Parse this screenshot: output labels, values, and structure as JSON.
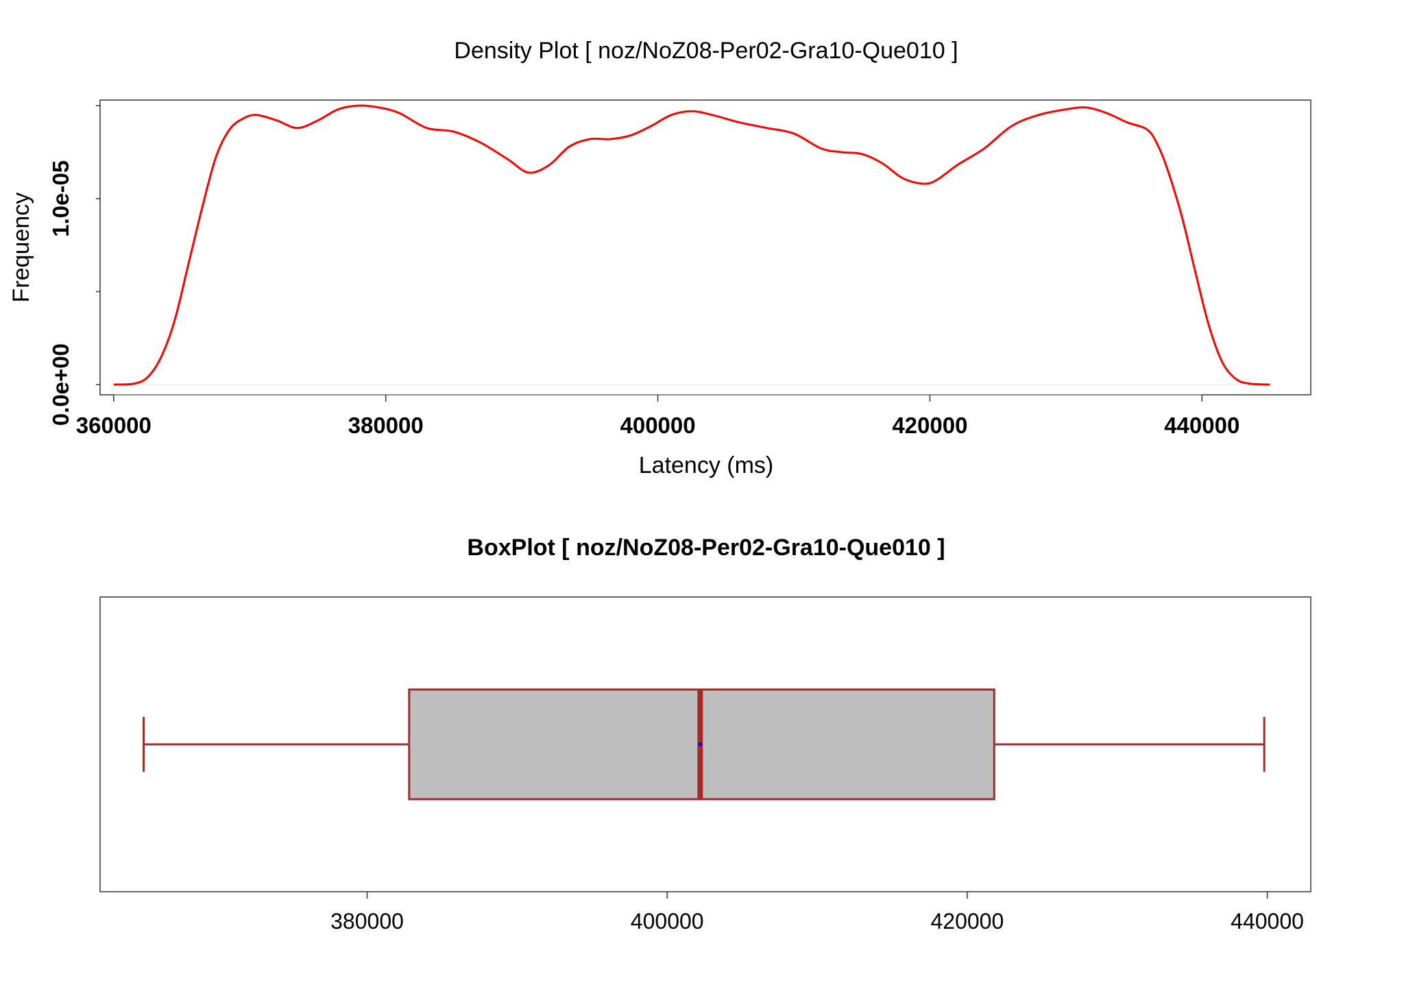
{
  "chart_data": [
    {
      "type": "line",
      "title": "Density Plot [ noz/NoZ08-Per02-Gra10-Que010 ]",
      "xlabel": "Latency (ms)",
      "ylabel": "Frequency",
      "xlim": [
        359000,
        448000
      ],
      "ylim": [
        -5.5e-07,
        1.53e-05
      ],
      "xticks": [
        360000,
        380000,
        400000,
        420000,
        440000
      ],
      "xtick_labels": [
        "360000",
        "380000",
        "400000",
        "420000",
        "440000"
      ],
      "yticks": [
        0,
        5e-06,
        1e-05,
        1.5e-05
      ],
      "ytick_labels": [
        "0.0e+00",
        "1.0e-05"
      ],
      "ytick_label_values": [
        0,
        1e-05
      ],
      "grid": false,
      "color": "#ff0000",
      "series": [
        {
          "x": [
            360000,
            361500,
            362500,
            363500,
            364500,
            365500,
            366500,
            367500,
            368500,
            369500,
            370500,
            372000,
            373500,
            375000,
            376500,
            378000,
            379500,
            381000,
            383000,
            385000,
            387000,
            389000,
            390500,
            392000,
            393500,
            395000,
            396500,
            398000,
            399500,
            401000,
            402500,
            404000,
            406000,
            408000,
            410000,
            412000,
            413500,
            415000,
            416500,
            418000,
            419500,
            420500,
            422000,
            424000,
            426000,
            428000,
            430000,
            431500,
            433000,
            434500,
            436000,
            436800,
            437500,
            438500,
            439500,
            440500,
            441500,
            442500,
            443500,
            445000
          ],
          "y": [
            0,
            5e-08,
            4e-07,
            1.5e-06,
            3.5e-06,
            6.5e-06,
            9.5e-06,
            1.22e-05,
            1.37e-05,
            1.43e-05,
            1.45e-05,
            1.42e-05,
            1.38e-05,
            1.42e-05,
            1.48e-05,
            1.5e-05,
            1.49e-05,
            1.46e-05,
            1.38e-05,
            1.36e-05,
            1.3e-05,
            1.21e-05,
            1.14e-05,
            1.18e-05,
            1.28e-05,
            1.32e-05,
            1.32e-05,
            1.34e-05,
            1.39e-05,
            1.45e-05,
            1.47e-05,
            1.45e-05,
            1.41e-05,
            1.38e-05,
            1.35e-05,
            1.27e-05,
            1.25e-05,
            1.24e-05,
            1.19e-05,
            1.11e-05,
            1.08e-05,
            1.1e-05,
            1.18e-05,
            1.27e-05,
            1.39e-05,
            1.45e-05,
            1.48e-05,
            1.49e-05,
            1.46e-05,
            1.41e-05,
            1.37e-05,
            1.28e-05,
            1.15e-05,
            9.1e-06,
            6.1e-06,
            3.2e-06,
            1.2e-06,
            3e-07,
            5e-08,
            0
          ]
        }
      ]
    },
    {
      "type": "box",
      "title": "BoxPlot [ noz/NoZ08-Per02-Gra10-Que010 ]",
      "xlim": [
        362200,
        442900
      ],
      "xticks": [
        380000,
        400000,
        420000,
        440000
      ],
      "xtick_labels": [
        "380000",
        "400000",
        "420000",
        "440000"
      ],
      "grid": false,
      "whisker_low": 365100,
      "q1": 382800,
      "median": 402200,
      "mean": 402200,
      "q3": 421800,
      "whisker_high": 439800,
      "box_fill": "#bebebe",
      "line_color": "#a52a2a",
      "mean_color": "#0000ff"
    }
  ]
}
